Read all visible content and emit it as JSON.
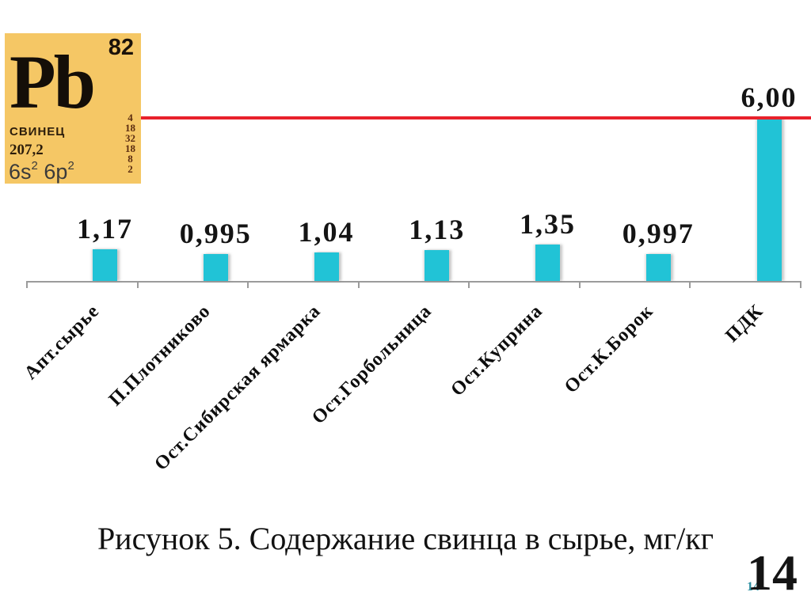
{
  "element_card": {
    "atomic_number": "82",
    "symbol": "Pb",
    "name": "СВИНЕЦ",
    "atomic_mass": "207,2",
    "electron_config": {
      "orb1": "6s",
      "sup1": "2",
      "orb2": "6p",
      "sup2": "2"
    },
    "shells": [
      "4",
      "18",
      "32",
      "18",
      "8",
      "2"
    ],
    "bg_color": "#f5c765"
  },
  "chart_data": {
    "type": "bar",
    "title": "",
    "xlabel": "",
    "ylabel": "",
    "categories": [
      "Апт.сырье",
      "П.Плотниково",
      "Ост.Сибирская ярмарка",
      "Ост.Горбольница",
      "Ост.Куприна",
      "Ост.К.Борок",
      "ПДК"
    ],
    "values": [
      1.17,
      0.995,
      1.04,
      1.13,
      1.35,
      0.997,
      6.0
    ],
    "value_labels": [
      "1,17",
      "0,995",
      "1,04",
      "1,13",
      "1,35",
      "0,997",
      "6,00"
    ],
    "ylim": [
      0,
      6
    ],
    "grid": false,
    "legend": false,
    "bar_color": "#21c3d6",
    "axis_color": "#9b9b9b",
    "threshold_line": {
      "value": 6.0,
      "color": "#e8212b"
    }
  },
  "caption": "Рисунок 5. Содержание свинца в сырье, мг/кг",
  "page_number": "14",
  "slide_number": "14"
}
